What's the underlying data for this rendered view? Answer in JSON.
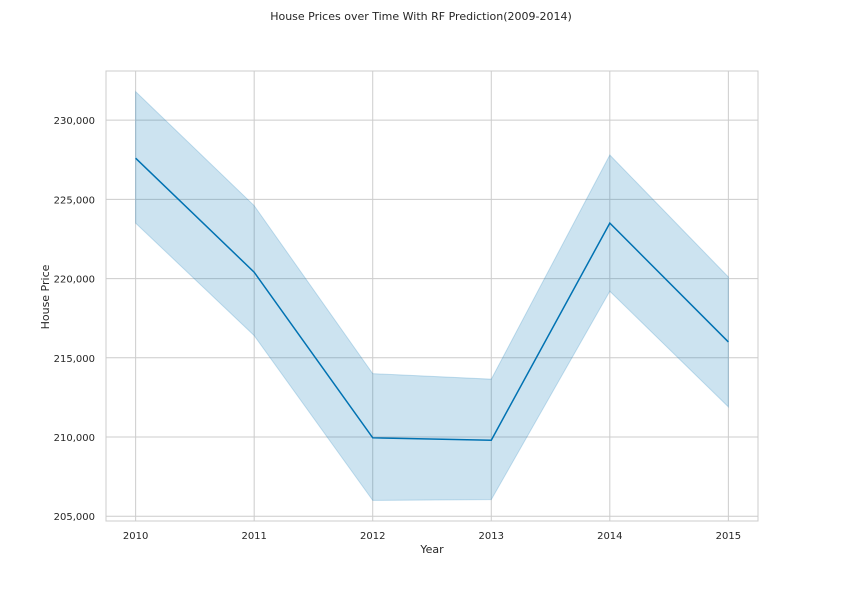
{
  "chart_data": {
    "type": "line",
    "title": "House Prices over Time With RF Prediction(2009-2014)",
    "xlabel": "Year",
    "ylabel": "House Price",
    "x": [
      2010,
      2011,
      2012,
      2013,
      2014,
      2015
    ],
    "x_tick_labels": [
      "2010",
      "2011",
      "2012",
      "2013",
      "2014",
      "2015"
    ],
    "y_tick_values": [
      205000,
      210000,
      215000,
      220000,
      225000,
      230000
    ],
    "y_tick_labels": [
      "205,000",
      "210,000",
      "215,000",
      "220,000",
      "225,000",
      "230,000"
    ],
    "xlim": [
      2009.75,
      2015.25
    ],
    "ylim": [
      204700,
      233100
    ],
    "grid": true,
    "legend": "none",
    "series": [
      {
        "values": [
          227600,
          220400,
          209950,
          209800,
          223500,
          216000
        ],
        "ci_lower": [
          223500,
          216400,
          206000,
          206050,
          219200,
          211900
        ],
        "ci_upper": [
          231800,
          224600,
          214000,
          213650,
          227800,
          220100
        ],
        "color": "#0072b2",
        "band_color": "#0072b2"
      }
    ]
  }
}
